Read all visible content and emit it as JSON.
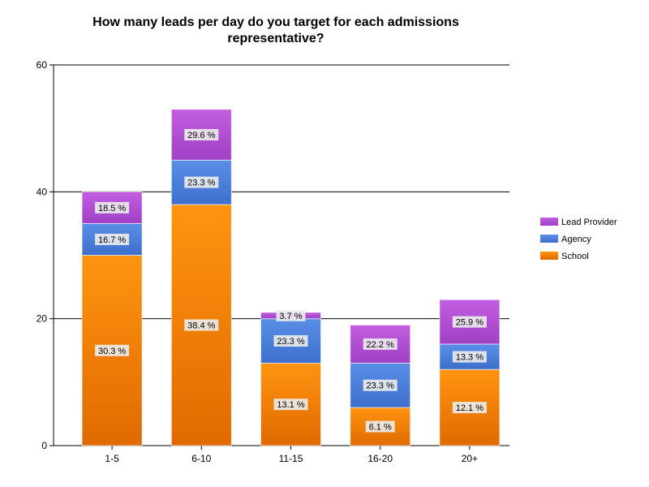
{
  "chart_data": {
    "type": "bar",
    "stacked": true,
    "title": "How many leads per day do you target for each admissions representative?",
    "xlabel": "",
    "ylabel": "",
    "categories": [
      "1-5",
      "6-10",
      "11-15",
      "16-20",
      "20+"
    ],
    "ylim": [
      0,
      60
    ],
    "yticks": [
      0,
      20,
      40,
      60
    ],
    "grid": true,
    "legend_position": "right",
    "series": [
      {
        "name": "School",
        "color": "#ff8c00",
        "values": [
          30,
          38,
          13,
          6,
          12
        ],
        "labels": [
          "30.3 %",
          "38.4 %",
          "13.1 %",
          "6.1 %",
          "12.1 %"
        ]
      },
      {
        "name": "Agency",
        "color": "#4a7fdc",
        "values": [
          5,
          7,
          7,
          7,
          4
        ],
        "labels": [
          "16.7 %",
          "23.3 %",
          "23.3 %",
          "23.3 %",
          "13.3 %"
        ]
      },
      {
        "name": "Lead Provider",
        "color": "#b44fd2",
        "values": [
          5,
          8,
          1,
          6,
          7
        ],
        "labels": [
          "18.5 %",
          "29.6 %",
          "3.7 %",
          "22.2 %",
          "25.9 %"
        ]
      }
    ]
  }
}
